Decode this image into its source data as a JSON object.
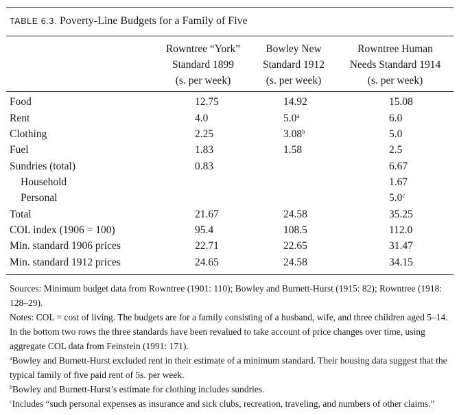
{
  "caption": {
    "label": "TABLE 6.3.",
    "title": "Poverty-Line Budgets for a Family of Five"
  },
  "columns": [
    {
      "lines": [
        "Rowntree “York”",
        "Standard 1899",
        "(s. per week)"
      ]
    },
    {
      "lines": [
        "Bowley New",
        "Standard 1912",
        "(s. per week)"
      ]
    },
    {
      "lines": [
        "Rowntree Human",
        "Needs Standard 1914",
        "(s. per week)"
      ]
    }
  ],
  "rows": [
    {
      "label": "Food",
      "indent": false,
      "values": [
        "12.75",
        "14.92",
        "15.08"
      ],
      "marks": [
        "",
        "",
        ""
      ]
    },
    {
      "label": "Rent",
      "indent": false,
      "values": [
        "4.0",
        "5.0",
        "6.0"
      ],
      "marks": [
        "",
        "a",
        ""
      ]
    },
    {
      "label": "Clothing",
      "indent": false,
      "values": [
        "2.25",
        "3.08",
        "5.0"
      ],
      "marks": [
        "",
        "b",
        ""
      ]
    },
    {
      "label": "Fuel",
      "indent": false,
      "values": [
        "1.83",
        "1.58",
        "2.5"
      ],
      "marks": [
        "",
        "",
        ""
      ]
    },
    {
      "label": "Sundries (total)",
      "indent": false,
      "values": [
        "0.83",
        "",
        "6.67"
      ],
      "marks": [
        "",
        "",
        ""
      ]
    },
    {
      "label": "Household",
      "indent": true,
      "values": [
        "",
        "",
        "1.67"
      ],
      "marks": [
        "",
        "",
        ""
      ]
    },
    {
      "label": "Personal",
      "indent": true,
      "values": [
        "",
        "",
        "5.0"
      ],
      "marks": [
        "",
        "",
        "c"
      ]
    },
    {
      "label": "Total",
      "indent": false,
      "values": [
        "21.67",
        "24.58",
        "35.25"
      ],
      "marks": [
        "",
        "",
        ""
      ]
    },
    {
      "label": "COL index (1906 = 100)",
      "indent": false,
      "values": [
        "95.4",
        "108.5",
        "112.0"
      ],
      "marks": [
        "",
        "",
        ""
      ]
    },
    {
      "label": "Min. standard 1906 prices",
      "indent": false,
      "values": [
        "22.71",
        "22.65",
        "31.47"
      ],
      "marks": [
        "",
        "",
        ""
      ]
    },
    {
      "label": "Min. standard 1912 prices",
      "indent": false,
      "values": [
        "24.65",
        "24.58",
        "34.15"
      ],
      "marks": [
        "",
        "",
        ""
      ]
    }
  ],
  "notes": {
    "sources": "Sources: Minimum budget data from Rowntree (1901: 110); Bowley and Burnett-Hurst (1915: 82); Rowntree (1918: 128–29).",
    "general": "Notes: COL = cost of living. The budgets are for a family consisting of a husband, wife, and three children aged 5–14. In the bottom two rows the three standards have been revalued to take account of price changes over time, using aggregate COL data from Feinstein (1991: 171).",
    "footnotes": [
      {
        "mark": "a",
        "text": "Bowley and Burnett-Hurst excluded rent in their estimate of a minimum standard. Their housing data suggest that the typical family of five paid rent of 5s. per week."
      },
      {
        "mark": "b",
        "text": "Bowley and Burnett-Hurst’s estimate for clothing includes sundries."
      },
      {
        "mark": "c",
        "text": "Includes “such personal expenses as insurance and sick clubs, recreation, traveling, and numbers of other claims.”"
      }
    ]
  }
}
